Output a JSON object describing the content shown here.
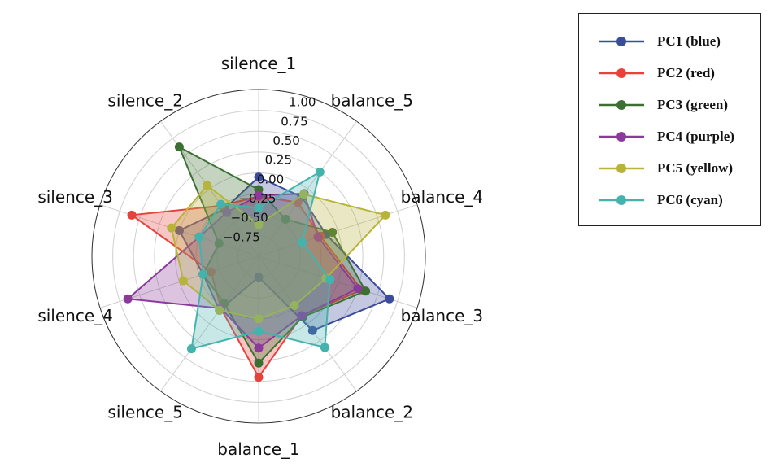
{
  "chart_data": {
    "type": "radar",
    "axes": [
      "silence_1",
      "balance_5",
      "balance_4",
      "balance_3",
      "balance_2",
      "balance_1",
      "silence_5",
      "silence_4",
      "silence_3",
      "silence_2"
    ],
    "r_ticks": [
      "1.00",
      "0.75",
      "0.50",
      "0.25",
      "0.00",
      "−0.25",
      "−0.50",
      "−0.75"
    ],
    "r_tick_values": [
      1.0,
      0.75,
      0.5,
      0.25,
      0.0,
      -0.25,
      -0.5,
      -0.75
    ],
    "r_range": [
      -1.0,
      1.0
    ],
    "grid": true,
    "legend_position": "right",
    "series": [
      {
        "name": "PC1 (blue)",
        "color": "#3c4c9c",
        "values": [
          -0.05,
          -0.12,
          -0.15,
          0.65,
          0.1,
          -0.75,
          -0.2,
          -0.3,
          0.0,
          -0.3
        ]
      },
      {
        "name": "PC2 (red)",
        "color": "#e8413b",
        "values": [
          -0.28,
          -0.2,
          -0.22,
          0.3,
          -0.12,
          0.45,
          -0.23,
          -0.4,
          0.6,
          -0.25
        ]
      },
      {
        "name": "PC3 (green)",
        "color": "#3b7032",
        "values": [
          -0.2,
          -0.45,
          -0.07,
          0.35,
          -0.1,
          0.28,
          -0.3,
          -0.3,
          -0.5,
          0.62
        ]
      },
      {
        "name": "PC4 (purple)",
        "color": "#8b3a9c",
        "values": [
          -0.27,
          -0.07,
          -0.25,
          0.25,
          -0.12,
          0.1,
          -0.23,
          0.65,
          -0.25,
          -0.35
        ]
      },
      {
        "name": "PC5 (yellow)",
        "color": "#b8b43a",
        "values": [
          -0.62,
          -0.08,
          0.6,
          -0.15,
          -0.27,
          -0.25,
          -0.2,
          -0.05,
          0.1,
          0.05
        ]
      },
      {
        "name": "PC6 (cyan)",
        "color": "#45b3ad",
        "values": [
          -0.42,
          0.25,
          -0.45,
          -0.1,
          0.35,
          -0.1,
          0.37,
          -0.3,
          -0.25,
          -0.23
        ]
      }
    ]
  }
}
